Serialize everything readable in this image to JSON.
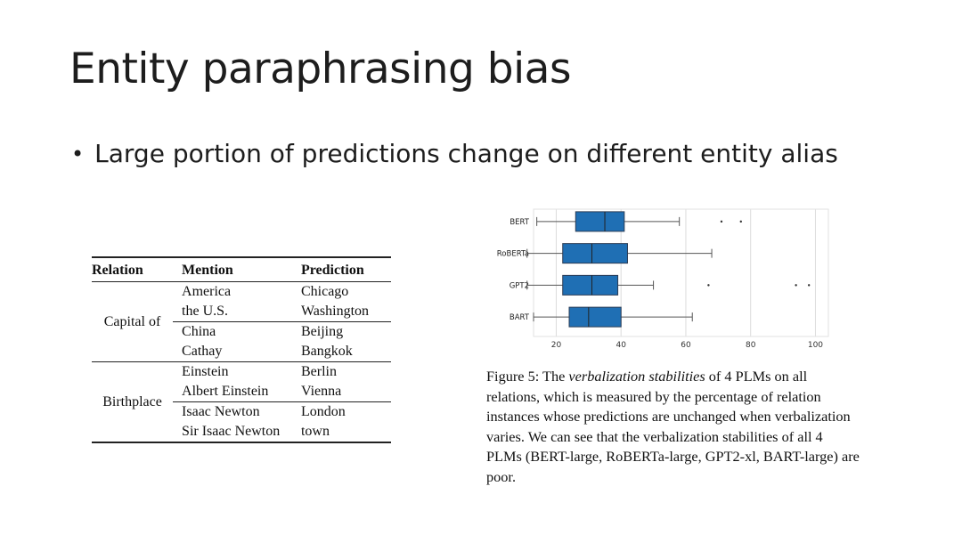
{
  "slide": {
    "title": "Entity paraphrasing bias",
    "bullet": "Large portion of predictions change on different entity alias"
  },
  "table": {
    "headers": [
      "Relation",
      "Mention",
      "Prediction"
    ],
    "groups": [
      {
        "relation": "Capital of",
        "rows": [
          {
            "mention": "America",
            "prediction": "Chicago"
          },
          {
            "mention": "the U.S.",
            "prediction": "Washington"
          },
          {
            "mention": "China",
            "prediction": "Beijing"
          },
          {
            "mention": "Cathay",
            "prediction": "Bangkok"
          }
        ]
      },
      {
        "relation": "Birthplace",
        "rows": [
          {
            "mention": "Einstein",
            "prediction": "Berlin"
          },
          {
            "mention": "Albert Einstein",
            "prediction": "Vienna"
          },
          {
            "mention": "Isaac Newton",
            "prediction": "London"
          },
          {
            "mention": "Sir Isaac Newton",
            "prediction": "town"
          }
        ]
      }
    ]
  },
  "chart_data": {
    "type": "boxplot",
    "orientation": "horizontal",
    "title": "",
    "xlabel": "",
    "ylabel": "",
    "xlim": [
      13,
      104
    ],
    "xticks": [
      20,
      40,
      60,
      80,
      100
    ],
    "grid": "vertical",
    "box_color": "#1f6fb4",
    "categories": [
      "BERT",
      "RoBERTa",
      "GPT2",
      "BART"
    ],
    "series": [
      {
        "name": "BERT",
        "whisker_low": 14,
        "q1": 26,
        "median": 35,
        "q3": 41,
        "whisker_high": 58,
        "outliers": [
          71,
          77
        ]
      },
      {
        "name": "RoBERTa",
        "whisker_low": 11,
        "q1": 22,
        "median": 31,
        "q3": 42,
        "whisker_high": 68,
        "outliers": []
      },
      {
        "name": "GPT2",
        "whisker_low": 11,
        "q1": 22,
        "median": 31,
        "q3": 39,
        "whisker_high": 50,
        "outliers": [
          67,
          94,
          98
        ]
      },
      {
        "name": "BART",
        "whisker_low": 13,
        "q1": 24,
        "median": 30,
        "q3": 40,
        "whisker_high": 62,
        "outliers": []
      }
    ]
  },
  "caption": {
    "prefix": "Figure 5: The ",
    "emph": "verbalization stabilities",
    "text": " of 4 PLMs on all relations, which is measured by the percentage of relation instances whose predictions are unchanged when verbalization varies. We can see that the verbalization stabilities of all 4 PLMs (BERT-large, RoBERTa-large, GPT2-xl, BART-large) are poor."
  }
}
